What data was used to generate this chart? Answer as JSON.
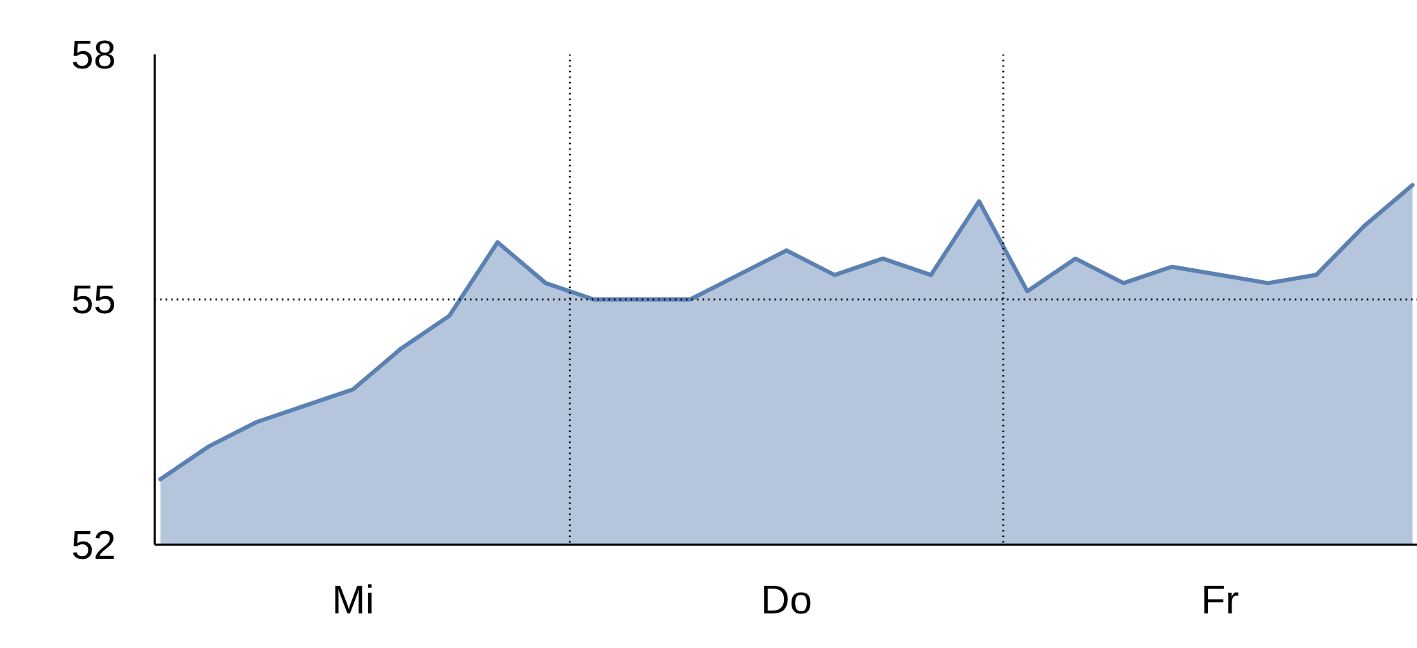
{
  "chart_data": {
    "type": "area",
    "categories": [
      null,
      null,
      null,
      null,
      "Mi",
      null,
      null,
      null,
      null,
      null,
      null,
      null,
      null,
      "Do",
      null,
      null,
      null,
      null,
      null,
      null,
      null,
      null,
      "Fr",
      null,
      null,
      null,
      null
    ],
    "series": [
      {
        "color": "#5b80b2",
        "values": [
          52.8,
          53.2,
          53.5,
          53.7,
          53.9,
          54.4,
          54.8,
          55.7,
          55.2,
          55.0,
          55.0,
          55.0,
          55.3,
          55.6,
          55.3,
          55.5,
          55.3,
          56.2,
          55.1,
          55.5,
          55.2,
          55.4,
          55.3,
          55.2,
          55.3,
          55.9,
          56.4
        ]
      }
    ],
    "ylim": [
      52,
      58
    ],
    "yticks": [
      52,
      55,
      58
    ],
    "ref_lines": [
      {
        "axis": "y",
        "value": 55,
        "line_style": "dotted",
        "color": "#000000"
      }
    ],
    "grid": false
  }
}
